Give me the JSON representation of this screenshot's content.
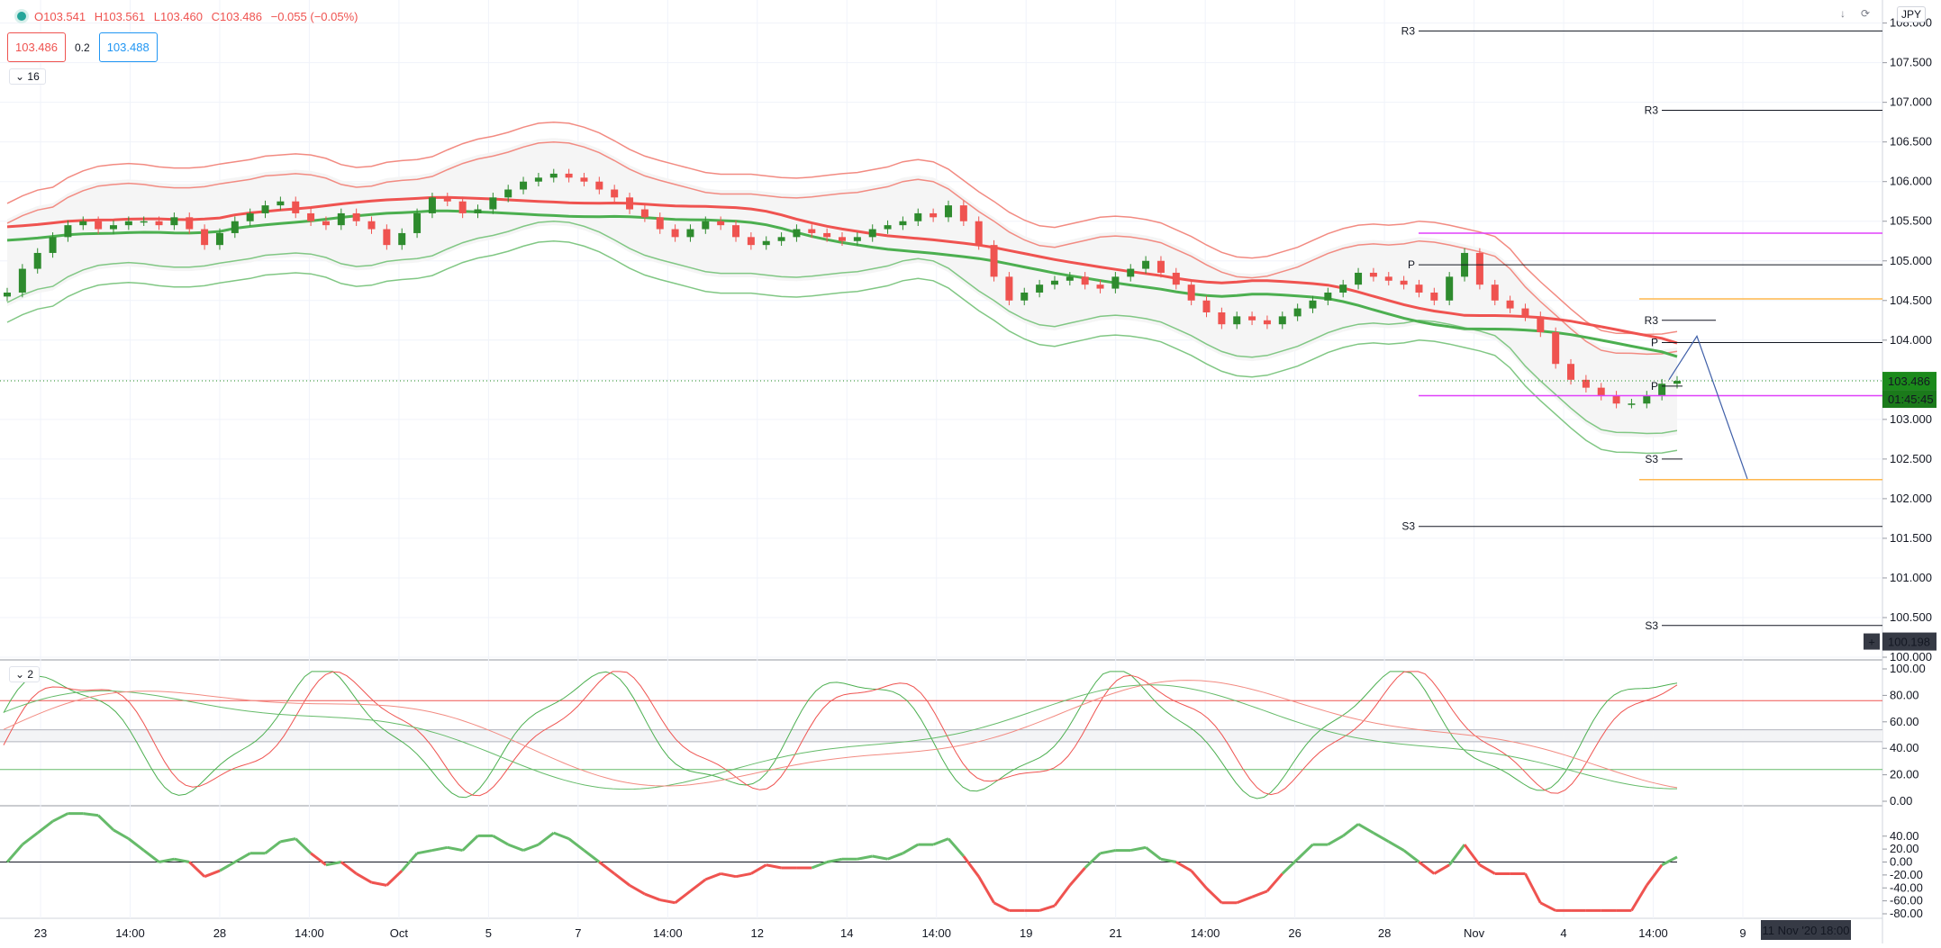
{
  "header": {
    "open": "O103.541",
    "high": "H103.561",
    "low": "L103.460",
    "close": "C103.486",
    "change": "−0.055 (−0.05%)",
    "sell_price": "103.486",
    "spread": "0.2",
    "buy_price": "103.488",
    "indicator_count_main": "16",
    "indicator_count_osc": "2",
    "currency": "JPY"
  },
  "colors": {
    "bull": "#26a69a",
    "bull_dark": "#2e8b2e",
    "bear": "#ef5350",
    "band_red": "#f28b82",
    "band_green": "#81c784",
    "pivot": "#131722",
    "magenta": "#e040fb",
    "orange": "#ffb74d",
    "projection": "#3f5fa8",
    "price_label": "#1b8a1b"
  },
  "chart_data": [
    {
      "type": "candlestick",
      "symbol_currency": "JPY",
      "ylim": [
        100.0,
        108.2
      ],
      "y_ticks": [
        "108.000",
        "107.500",
        "107.000",
        "106.500",
        "106.000",
        "105.500",
        "105.000",
        "104.500",
        "104.000",
        "103.500",
        "103.000",
        "102.500",
        "102.000",
        "101.500",
        "101.000",
        "100.500",
        "100.000"
      ],
      "x_ticks": [
        "23",
        "14:00",
        "28",
        "14:00",
        "Oct",
        "5",
        "7",
        "14:00",
        "12",
        "14",
        "14:00",
        "19",
        "21",
        "14:00",
        "26",
        "28",
        "Nov",
        "4",
        "14:00",
        "9"
      ],
      "current_price": "103.486",
      "countdown": "01:45:45",
      "crosshair_price": "100.198",
      "crosshair_time": "11 Nov '20   18:00",
      "close_series": [
        104.6,
        104.9,
        105.1,
        105.3,
        105.45,
        105.5,
        105.4,
        105.45,
        105.5,
        105.5,
        105.45,
        105.55,
        105.4,
        105.2,
        105.35,
        105.5,
        105.6,
        105.7,
        105.75,
        105.6,
        105.5,
        105.45,
        105.6,
        105.5,
        105.4,
        105.2,
        105.35,
        105.6,
        105.8,
        105.75,
        105.6,
        105.65,
        105.8,
        105.9,
        106.0,
        106.05,
        106.1,
        106.05,
        106.0,
        105.9,
        105.8,
        105.65,
        105.55,
        105.4,
        105.3,
        105.4,
        105.5,
        105.45,
        105.3,
        105.2,
        105.25,
        105.3,
        105.4,
        105.35,
        105.3,
        105.25,
        105.3,
        105.4,
        105.45,
        105.5,
        105.6,
        105.55,
        105.7,
        105.5,
        105.2,
        104.8,
        104.5,
        104.6,
        104.7,
        104.75,
        104.8,
        104.7,
        104.65,
        104.8,
        104.9,
        105.0,
        104.85,
        104.7,
        104.5,
        104.35,
        104.2,
        104.3,
        104.25,
        104.2,
        104.3,
        104.4,
        104.5,
        104.6,
        104.7,
        104.85,
        104.8,
        104.75,
        104.7,
        104.6,
        104.5,
        104.8,
        105.1,
        104.7,
        104.5,
        104.4,
        104.3,
        104.1,
        103.7,
        103.5,
        103.4,
        103.3,
        103.2,
        103.2,
        103.3,
        103.45,
        103.486
      ],
      "pivots": [
        {
          "label": "R3",
          "value": 107.9
        },
        {
          "label": "P",
          "value": 104.95
        },
        {
          "label": "S3",
          "value": 101.65
        },
        {
          "label": "R3",
          "value": 106.9
        },
        {
          "label": "S3",
          "value": 100.4
        },
        {
          "label": "R3",
          "value": 104.25
        },
        {
          "label": "P",
          "value": 103.97
        },
        {
          "label": "P",
          "value": 103.42
        },
        {
          "label": "S3",
          "value": 102.5
        }
      ],
      "horizontal_levels": [
        {
          "color": "magenta",
          "value": 105.35
        },
        {
          "color": "magenta",
          "value": 103.3
        },
        {
          "color": "orange",
          "value": 104.52
        },
        {
          "color": "orange",
          "value": 102.24
        }
      ],
      "projection": [
        103.5,
        104.05,
        102.25
      ]
    },
    {
      "type": "line",
      "name": "stochastic",
      "ylim": [
        0,
        100
      ],
      "y_ticks": [
        "100.00",
        "80.00",
        "60.00",
        "40.00",
        "20.00",
        "0.00"
      ],
      "levels": [
        76,
        54,
        45,
        24
      ]
    },
    {
      "type": "line",
      "name": "momentum",
      "ylim": [
        -80,
        80
      ],
      "y_ticks": [
        "40.00",
        "20.00",
        "0.00",
        "-20.00",
        "-40.00",
        "-60.00",
        "-80.00"
      ],
      "zero_line": 0
    }
  ]
}
